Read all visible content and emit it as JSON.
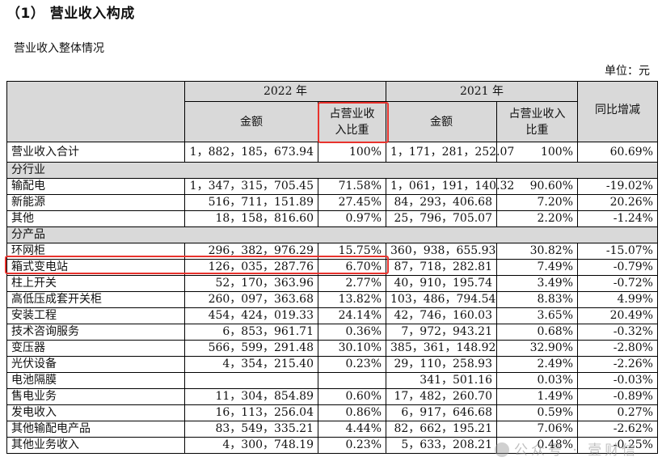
{
  "heading": "（1） 营业收入构成",
  "subtitle": "营业收入整体情况",
  "unit": "单位：元",
  "header": {
    "year_2022": "2022 年",
    "year_2021": "2021 年",
    "yoy": "同比增减",
    "amount": "金额",
    "ratio": "占营业收入比重"
  },
  "total": {
    "label": "营业收入合计",
    "a2022": "1，882，185，673.94",
    "r2022": "100%",
    "a2021": "1，171，281，252.07",
    "r2021": "100%",
    "yoy": "60.69%"
  },
  "section_industry": "分行业",
  "industry_rows": [
    {
      "label": "输配电",
      "a2022": "1，347，315，705.45",
      "r2022": "71.58%",
      "a2021": "1，061，191，140.32",
      "r2021": "90.60%",
      "yoy": "-19.02%"
    },
    {
      "label": "新能源",
      "a2022": "516，711，151.89",
      "r2022": "27.45%",
      "a2021": "84，293，406.68",
      "r2021": "7.20%",
      "yoy": "20.26%"
    },
    {
      "label": "其他",
      "a2022": "18，158，816.60",
      "r2022": "0.97%",
      "a2021": "25，796，705.07",
      "r2021": "2.20%",
      "yoy": "-1.24%"
    }
  ],
  "section_product": "分产品",
  "product_rows": [
    {
      "label": "环网柜",
      "a2022": "296，382，976.29",
      "r2022": "15.75%",
      "a2021": "360，938，655.93",
      "r2021": "30.82%",
      "yoy": "-15.07%"
    },
    {
      "label": "箱式变电站",
      "a2022": "126，035，287.76",
      "r2022": "6.70%",
      "a2021": "87，718，282.81",
      "r2021": "7.49%",
      "yoy": "-0.79%"
    },
    {
      "label": "柱上开关",
      "a2022": "52，170，363.96",
      "r2022": "2.77%",
      "a2021": "40，910，195.74",
      "r2021": "3.49%",
      "yoy": "-0.72%"
    },
    {
      "label": "高低压成套开关柜",
      "a2022": "260，097，363.68",
      "r2022": "13.82%",
      "a2021": "103，486，794.54",
      "r2021": "8.83%",
      "yoy": "4.99%"
    },
    {
      "label": "安装工程",
      "a2022": "454，424，019.33",
      "r2022": "24.14%",
      "a2021": "42，746，160.03",
      "r2021": "3.65%",
      "yoy": "20.49%"
    },
    {
      "label": "技术咨询服务",
      "a2022": "6，853，961.71",
      "r2022": "0.36%",
      "a2021": "7，972，943.21",
      "r2021": "0.68%",
      "yoy": "-0.32%"
    },
    {
      "label": "变压器",
      "a2022": "566，599，291.48",
      "r2022": "30.10%",
      "a2021": "385，361，148.92",
      "r2021": "32.90%",
      "yoy": "-2.80%"
    },
    {
      "label": "光伏设备",
      "a2022": "4，354，215.40",
      "r2022": "0.23%",
      "a2021": "29，110，258.93",
      "r2021": "2.49%",
      "yoy": "-2.26%"
    },
    {
      "label": "电池隔膜",
      "a2022": "",
      "r2022": "",
      "a2021": "341，501.16",
      "r2021": "0.03%",
      "yoy": "-0.03%"
    },
    {
      "label": "售电业务",
      "a2022": "11，304，854.89",
      "r2022": "0.60%",
      "a2021": "17，482，260.70",
      "r2021": "1.49%",
      "yoy": "-0.89%"
    },
    {
      "label": "发电收入",
      "a2022": "16，113，256.04",
      "r2022": "0.86%",
      "a2021": "6，917，646.68",
      "r2021": "0.59%",
      "yoy": "0.27%"
    },
    {
      "label": "其他输配电产品",
      "a2022": "83，549，335.21",
      "r2022": "4.44%",
      "a2021": "82，662，195.21",
      "r2021": "7.06%",
      "yoy": "-2.62%"
    },
    {
      "label": "其他业务收入",
      "a2022": "4，300，748.19",
      "r2022": "0.23%",
      "a2021": "5，633，208.21",
      "r2021": "0.48%",
      "yoy": "-0.25%"
    }
  ],
  "watermark": "公众号 · 壹财信",
  "colors": {
    "header_bg": "#d9d9d9",
    "highlight": "#e8322d"
  }
}
